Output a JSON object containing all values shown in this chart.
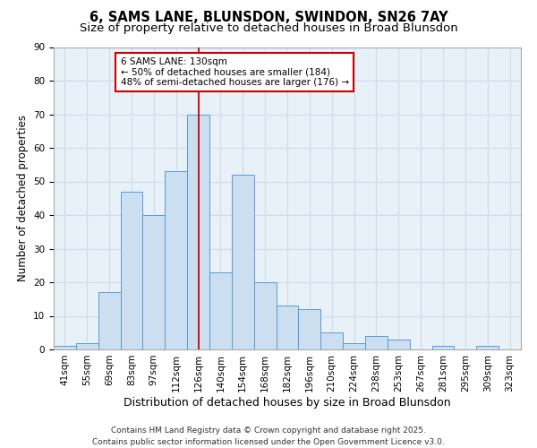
{
  "title": "6, SAMS LANE, BLUNSDON, SWINDON, SN26 7AY",
  "subtitle": "Size of property relative to detached houses in Broad Blunsdon",
  "xlabel": "Distribution of detached houses by size in Broad Blunsdon",
  "ylabel": "Number of detached properties",
  "categories": [
    "41sqm",
    "55sqm",
    "69sqm",
    "83sqm",
    "97sqm",
    "112sqm",
    "126sqm",
    "140sqm",
    "154sqm",
    "168sqm",
    "182sqm",
    "196sqm",
    "210sqm",
    "224sqm",
    "238sqm",
    "253sqm",
    "267sqm",
    "281sqm",
    "295sqm",
    "309sqm",
    "323sqm"
  ],
  "values": [
    1,
    2,
    17,
    47,
    40,
    53,
    70,
    23,
    52,
    20,
    13,
    12,
    5,
    2,
    4,
    3,
    0,
    1,
    0,
    1,
    0
  ],
  "bar_color": "#ccdff0",
  "bar_edge_color": "#5b9bd5",
  "vline_color": "#cc0000",
  "annotation_text": "6 SAMS LANE: 130sqm\n← 50% of detached houses are smaller (184)\n48% of semi-detached houses are larger (176) →",
  "annotation_box_color": "#ffffff",
  "annotation_box_edge": "#cc0000",
  "ylim": [
    0,
    90
  ],
  "yticks": [
    0,
    10,
    20,
    30,
    40,
    50,
    60,
    70,
    80,
    90
  ],
  "grid_color": "#d0dce8",
  "bg_color": "#e8f0f8",
  "footer": "Contains HM Land Registry data © Crown copyright and database right 2025.\nContains public sector information licensed under the Open Government Licence v3.0.",
  "title_fontsize": 10.5,
  "subtitle_fontsize": 9.5,
  "xlabel_fontsize": 9,
  "ylabel_fontsize": 8.5,
  "tick_fontsize": 7.5,
  "annotation_fontsize": 7.5,
  "footer_fontsize": 6.5
}
